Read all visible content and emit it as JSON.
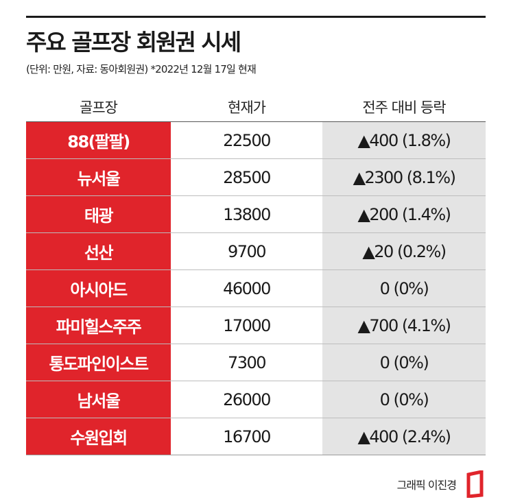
{
  "title": "주요 골프장 회원권 시세",
  "subtitle": "(단위: 만원, 자료: 동아회원권)  *2022년 12월 17일 현재",
  "headers": [
    "골프장",
    "현재가",
    "전주 대비 등락"
  ],
  "rows": [
    {
      "name": "88(팔팔)",
      "price": "22500",
      "change": "▲400 (1.8%)"
    },
    {
      "name": "뉴서울",
      "price": "28500",
      "change": "▲2300 (8.1%)"
    },
    {
      "name": "태광",
      "price": "13800",
      "change": "▲200 (1.4%)"
    },
    {
      "name": "선산",
      "price": "9700",
      "change": "▲20 (0.2%)"
    },
    {
      "name": "아시아드",
      "price": "46000",
      "change": "0 (0%)"
    },
    {
      "name": "파미힐스주주",
      "price": "17000",
      "change": "▲700 (4.1%)"
    },
    {
      "name": "통도파인이스트",
      "price": "7300",
      "change": "0 (0%)"
    },
    {
      "name": "남서울",
      "price": "26000",
      "change": "0 (0%)"
    },
    {
      "name": "수원입회",
      "price": "16700",
      "change": "▲400 (2.4%)"
    }
  ],
  "credit": "그래픽 이진경",
  "colors": {
    "name_cell": "#e0242b",
    "change_cell": "#e4e4e4",
    "logo": "#e0242b"
  }
}
